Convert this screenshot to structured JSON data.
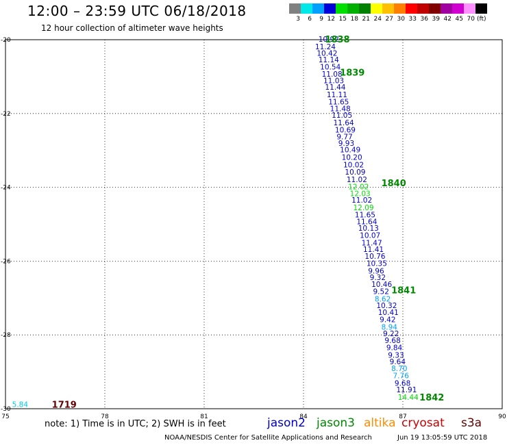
{
  "header": {
    "title": "12:00 – 23:59 UTC 06/18/2018",
    "subtitle": "12 hour collection of altimeter wave heights"
  },
  "legend": {
    "labels": [
      "3",
      "6",
      "9",
      "12",
      "15",
      "18",
      "21",
      "24",
      "27",
      "30",
      "33",
      "36",
      "39",
      "42",
      "45",
      "70"
    ],
    "unit": "(ft)",
    "colors": [
      "#808080",
      "#00e8e8",
      "#00a0ff",
      "#0000d8",
      "#00e000",
      "#00b000",
      "#008000",
      "#ffff00",
      "#ffc000",
      "#ff8000",
      "#ff0000",
      "#c00000",
      "#800000",
      "#a000a0",
      "#d000d0",
      "#ff90ff",
      "#000000"
    ]
  },
  "map": {
    "lon_ticks": [
      "75",
      "78",
      "81",
      "84",
      "87",
      "90"
    ],
    "lat_ticks": [
      "-20",
      "-22",
      "-24",
      "-26",
      "-28",
      "-30"
    ],
    "lon_range": [
      75,
      90
    ],
    "lat_range": [
      -20,
      -30
    ],
    "gridlines": "dotted"
  },
  "satellites": {
    "jason2": {
      "label": "jason2",
      "color": "#0000cc"
    },
    "jason3": {
      "label": "jason3",
      "color": "#008800"
    },
    "altika": {
      "label": "altika",
      "color": "#ff8c00"
    },
    "cryosat": {
      "label": "cryosat",
      "color": "#cc0000"
    },
    "s3a": {
      "label": "s3a",
      "color": "#660000"
    }
  },
  "observations": [
    {
      "lon": 84.45,
      "lat": -20.0,
      "value": "10.92",
      "color": "#0000cc"
    },
    {
      "lon": 84.35,
      "lat": -20.2,
      "value": "11.24",
      "color": "#0000cc"
    },
    {
      "lon": 84.4,
      "lat": -20.38,
      "value": "10.42",
      "color": "#0000cc"
    },
    {
      "lon": 84.45,
      "lat": -20.56,
      "value": "11.14",
      "color": "#0000cc"
    },
    {
      "lon": 84.5,
      "lat": -20.75,
      "value": "10.54",
      "color": "#0000cc"
    },
    {
      "lon": 84.55,
      "lat": -20.95,
      "value": "11.08",
      "color": "#0000cc"
    },
    {
      "lon": 84.6,
      "lat": -21.12,
      "value": "11.03",
      "color": "#0000cc"
    },
    {
      "lon": 84.65,
      "lat": -21.3,
      "value": "11.44",
      "color": "#0000cc"
    },
    {
      "lon": 84.7,
      "lat": -21.5,
      "value": "11.11",
      "color": "#0000cc"
    },
    {
      "lon": 84.75,
      "lat": -21.7,
      "value": "11.65",
      "color": "#0000cc"
    },
    {
      "lon": 84.8,
      "lat": -21.88,
      "value": "11.48",
      "color": "#0000cc"
    },
    {
      "lon": 84.85,
      "lat": -22.06,
      "value": "11.05",
      "color": "#0000cc"
    },
    {
      "lon": 84.9,
      "lat": -22.26,
      "value": "11.64",
      "color": "#0000cc"
    },
    {
      "lon": 84.95,
      "lat": -22.46,
      "value": "10.69",
      "color": "#0000cc"
    },
    {
      "lon": 85.0,
      "lat": -22.64,
      "value": "9.77",
      "color": "#0000cc"
    },
    {
      "lon": 85.05,
      "lat": -22.82,
      "value": "9.93",
      "color": "#0000cc"
    },
    {
      "lon": 85.1,
      "lat": -23.0,
      "value": "10.49",
      "color": "#0000cc"
    },
    {
      "lon": 85.15,
      "lat": -23.2,
      "value": "10.20",
      "color": "#0000cc"
    },
    {
      "lon": 85.2,
      "lat": -23.4,
      "value": "10.02",
      "color": "#0000cc"
    },
    {
      "lon": 85.25,
      "lat": -23.6,
      "value": "10.09",
      "color": "#0000cc"
    },
    {
      "lon": 85.3,
      "lat": -23.8,
      "value": "11.02",
      "color": "#0000cc"
    },
    {
      "lon": 85.35,
      "lat": -24.0,
      "value": "12.02",
      "color": "#00e000"
    },
    {
      "lon": 85.4,
      "lat": -24.18,
      "value": "12.03",
      "color": "#00e000"
    },
    {
      "lon": 85.45,
      "lat": -24.36,
      "value": "11.02",
      "color": "#0000cc"
    },
    {
      "lon": 85.5,
      "lat": -24.56,
      "value": "12.09",
      "color": "#00e000"
    },
    {
      "lon": 85.55,
      "lat": -24.76,
      "value": "11.65",
      "color": "#0000cc"
    },
    {
      "lon": 85.6,
      "lat": -24.94,
      "value": "11.64",
      "color": "#0000cc"
    },
    {
      "lon": 85.65,
      "lat": -25.12,
      "value": "10.13",
      "color": "#0000cc"
    },
    {
      "lon": 85.7,
      "lat": -25.32,
      "value": "10.07",
      "color": "#0000cc"
    },
    {
      "lon": 85.75,
      "lat": -25.52,
      "value": "11.47",
      "color": "#0000cc"
    },
    {
      "lon": 85.8,
      "lat": -25.7,
      "value": "11.41",
      "color": "#0000cc"
    },
    {
      "lon": 85.85,
      "lat": -25.88,
      "value": "10.76",
      "color": "#0000cc"
    },
    {
      "lon": 85.9,
      "lat": -26.08,
      "value": "10.35",
      "color": "#0000cc"
    },
    {
      "lon": 85.95,
      "lat": -26.28,
      "value": "9.96",
      "color": "#0000cc"
    },
    {
      "lon": 86.0,
      "lat": -26.46,
      "value": "9.32",
      "color": "#0000cc"
    },
    {
      "lon": 86.05,
      "lat": -26.64,
      "value": "10.46",
      "color": "#0000cc"
    },
    {
      "lon": 86.1,
      "lat": -26.84,
      "value": "9.52",
      "color": "#0000cc"
    },
    {
      "lon": 86.15,
      "lat": -27.04,
      "value": "8.62",
      "color": "#00a0ff"
    },
    {
      "lon": 86.2,
      "lat": -27.22,
      "value": "10.32",
      "color": "#0000cc"
    },
    {
      "lon": 86.25,
      "lat": -27.4,
      "value": "10.41",
      "color": "#0000cc"
    },
    {
      "lon": 86.3,
      "lat": -27.6,
      "value": "9.42",
      "color": "#0000cc"
    },
    {
      "lon": 86.35,
      "lat": -27.8,
      "value": "8.94",
      "color": "#00a0ff"
    },
    {
      "lon": 86.4,
      "lat": -27.98,
      "value": "9.22",
      "color": "#0000cc"
    },
    {
      "lon": 86.45,
      "lat": -28.16,
      "value": "9.68",
      "color": "#0000cc"
    },
    {
      "lon": 86.5,
      "lat": -28.36,
      "value": "9.84",
      "color": "#0000cc"
    },
    {
      "lon": 86.55,
      "lat": -28.56,
      "value": "9.33",
      "color": "#0000cc"
    },
    {
      "lon": 86.6,
      "lat": -28.74,
      "value": "9.64",
      "color": "#0000cc"
    },
    {
      "lon": 86.65,
      "lat": -28.92,
      "value": "8.70",
      "color": "#00a0ff"
    },
    {
      "lon": 86.7,
      "lat": -29.12,
      "value": "7.76",
      "color": "#00a0ff"
    },
    {
      "lon": 86.75,
      "lat": -29.32,
      "value": "9.68",
      "color": "#0000cc"
    },
    {
      "lon": 86.8,
      "lat": -29.5,
      "value": "11.91",
      "color": "#0000cc"
    },
    {
      "lon": 86.85,
      "lat": -29.7,
      "value": "14.44",
      "color": "#00e000"
    },
    {
      "lon": 75.2,
      "lat": -29.9,
      "value": "5.84",
      "color": "#00c8e8"
    }
  ],
  "track_labels": [
    {
      "lon": 84.65,
      "lat": -20.0,
      "text": "1838",
      "color": "#008800"
    },
    {
      "lon": 85.1,
      "lat": -20.9,
      "text": "1839",
      "color": "#008800"
    },
    {
      "lon": 86.35,
      "lat": -23.9,
      "text": "1840",
      "color": "#008800"
    },
    {
      "lon": 86.65,
      "lat": -26.8,
      "text": "1841",
      "color": "#008800"
    },
    {
      "lon": 87.5,
      "lat": -29.7,
      "text": "1842",
      "color": "#008800"
    },
    {
      "lon": 76.4,
      "lat": -29.9,
      "text": "1719",
      "color": "#660000"
    }
  ],
  "footer": {
    "note": "note: 1) Time is in UTC; 2) SWH is in feet",
    "credit": "NOAA/NESDIS Center for Satellite Applications and Research",
    "generated": "Jun 19 13:05:59 UTC 2018"
  }
}
